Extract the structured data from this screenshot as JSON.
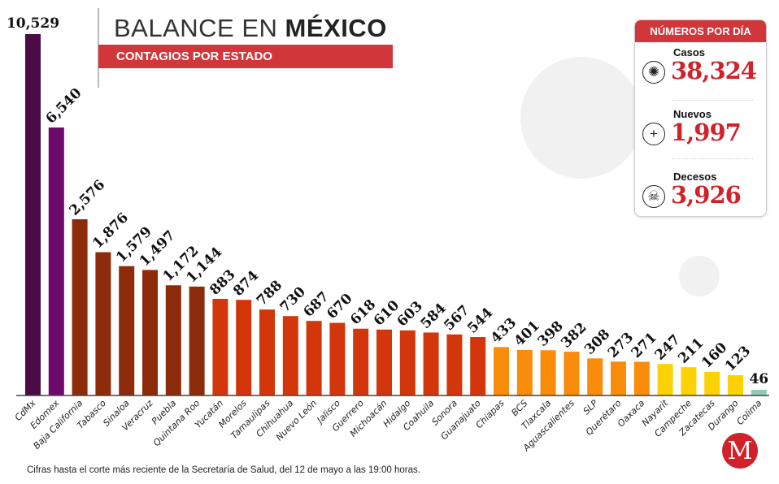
{
  "header": {
    "title_light": "BALANCE EN ",
    "title_bold": "MÉXICO",
    "subtitle": "CONTAGIOS POR ESTADO"
  },
  "panel": {
    "title": "NÚMEROS POR DÍA",
    "stats": [
      {
        "label": "Casos",
        "value": "38,324",
        "icon": "virus-icon"
      },
      {
        "label": "Nuevos",
        "value": "1,997",
        "icon": "plus-icon"
      },
      {
        "label": "Decesos",
        "value": "3,926",
        "icon": "skull-icon"
      }
    ]
  },
  "footnote": "Cifras hasta el corte más reciente de la Secretaría de Salud, del 12 de mayo a las 19:00 horas.",
  "logo": {
    "text": "M"
  },
  "chart_data": {
    "type": "bar",
    "title": "Contagios por estado",
    "categories": [
      "CdMx",
      "Edomex",
      "Baja California",
      "Tabasco",
      "Sinaloa",
      "Veracruz",
      "Puebla",
      "Quintana Roo",
      "Yucatán",
      "Morelos",
      "Tamaulipas",
      "Chihuahua",
      "Nuevo León",
      "Jalisco",
      "Guerrero",
      "Michoacán",
      "Hidalgo",
      "Coahuila",
      "Sonora",
      "Guanajuato",
      "Chiapas",
      "BCS",
      "Tlaxcala",
      "Aguascalientes",
      "SLP",
      "Querétaro",
      "Oaxaca",
      "Nayarit",
      "Campeche",
      "Zacatecas",
      "Durango",
      "Colima"
    ],
    "values": [
      10529,
      6540,
      2576,
      1876,
      1579,
      1497,
      1172,
      1144,
      883,
      874,
      788,
      730,
      687,
      670,
      618,
      610,
      603,
      584,
      567,
      544,
      433,
      401,
      398,
      382,
      308,
      273,
      271,
      247,
      211,
      160,
      123,
      46
    ],
    "labels": [
      "10,529",
      "6,540",
      "2,576",
      "1,876",
      "1,579",
      "1,497",
      "1,172",
      "1,144",
      "883",
      "874",
      "788",
      "730",
      "687",
      "670",
      "618",
      "610",
      "603",
      "584",
      "567",
      "544",
      "433",
      "401",
      "398",
      "382",
      "308",
      "273",
      "271",
      "247",
      "211",
      "160",
      "123",
      "46"
    ],
    "colors": [
      "#4a0b47",
      "#6e0a6b",
      "#8c2c0b",
      "#8c2c0b",
      "#8c2c0b",
      "#8c2c0b",
      "#8c2c0b",
      "#8c2c0b",
      "#d4360c",
      "#d4360c",
      "#d4360c",
      "#d4360c",
      "#d4360c",
      "#d4360c",
      "#d4360c",
      "#d4360c",
      "#d4360c",
      "#d4360c",
      "#d4360c",
      "#d4360c",
      "#f98c0a",
      "#f98c0a",
      "#f98c0a",
      "#f98c0a",
      "#f98c0a",
      "#f98c0a",
      "#f98c0a",
      "#fcd106",
      "#fcd106",
      "#fcd106",
      "#fcd106",
      "#8fcdb7"
    ],
    "xlabel": "",
    "ylabel": ""
  }
}
